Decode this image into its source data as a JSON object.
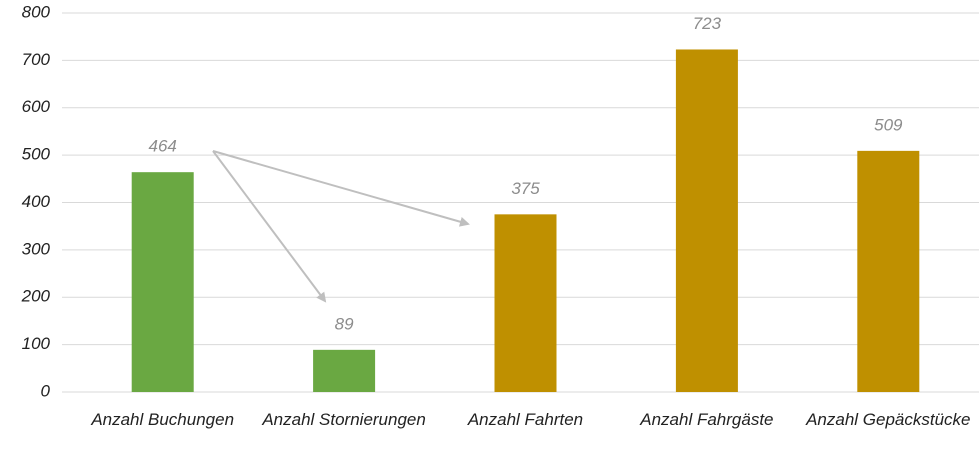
{
  "chart_data": {
    "type": "bar",
    "categories": [
      "Anzahl Buchungen",
      "Anzahl Stornierungen",
      "Anzahl Fahrten",
      "Anzahl Fahrgäste",
      "Anzahl Gepäckstücke"
    ],
    "values": [
      464,
      89,
      375,
      723,
      509
    ],
    "colors": [
      "#6aa842",
      "#6aa842",
      "#bf9000",
      "#bf9000",
      "#bf9000"
    ],
    "ylim": [
      0,
      800
    ],
    "yticks": [
      0,
      100,
      200,
      300,
      400,
      500,
      600,
      700,
      800
    ],
    "grid": true
  }
}
